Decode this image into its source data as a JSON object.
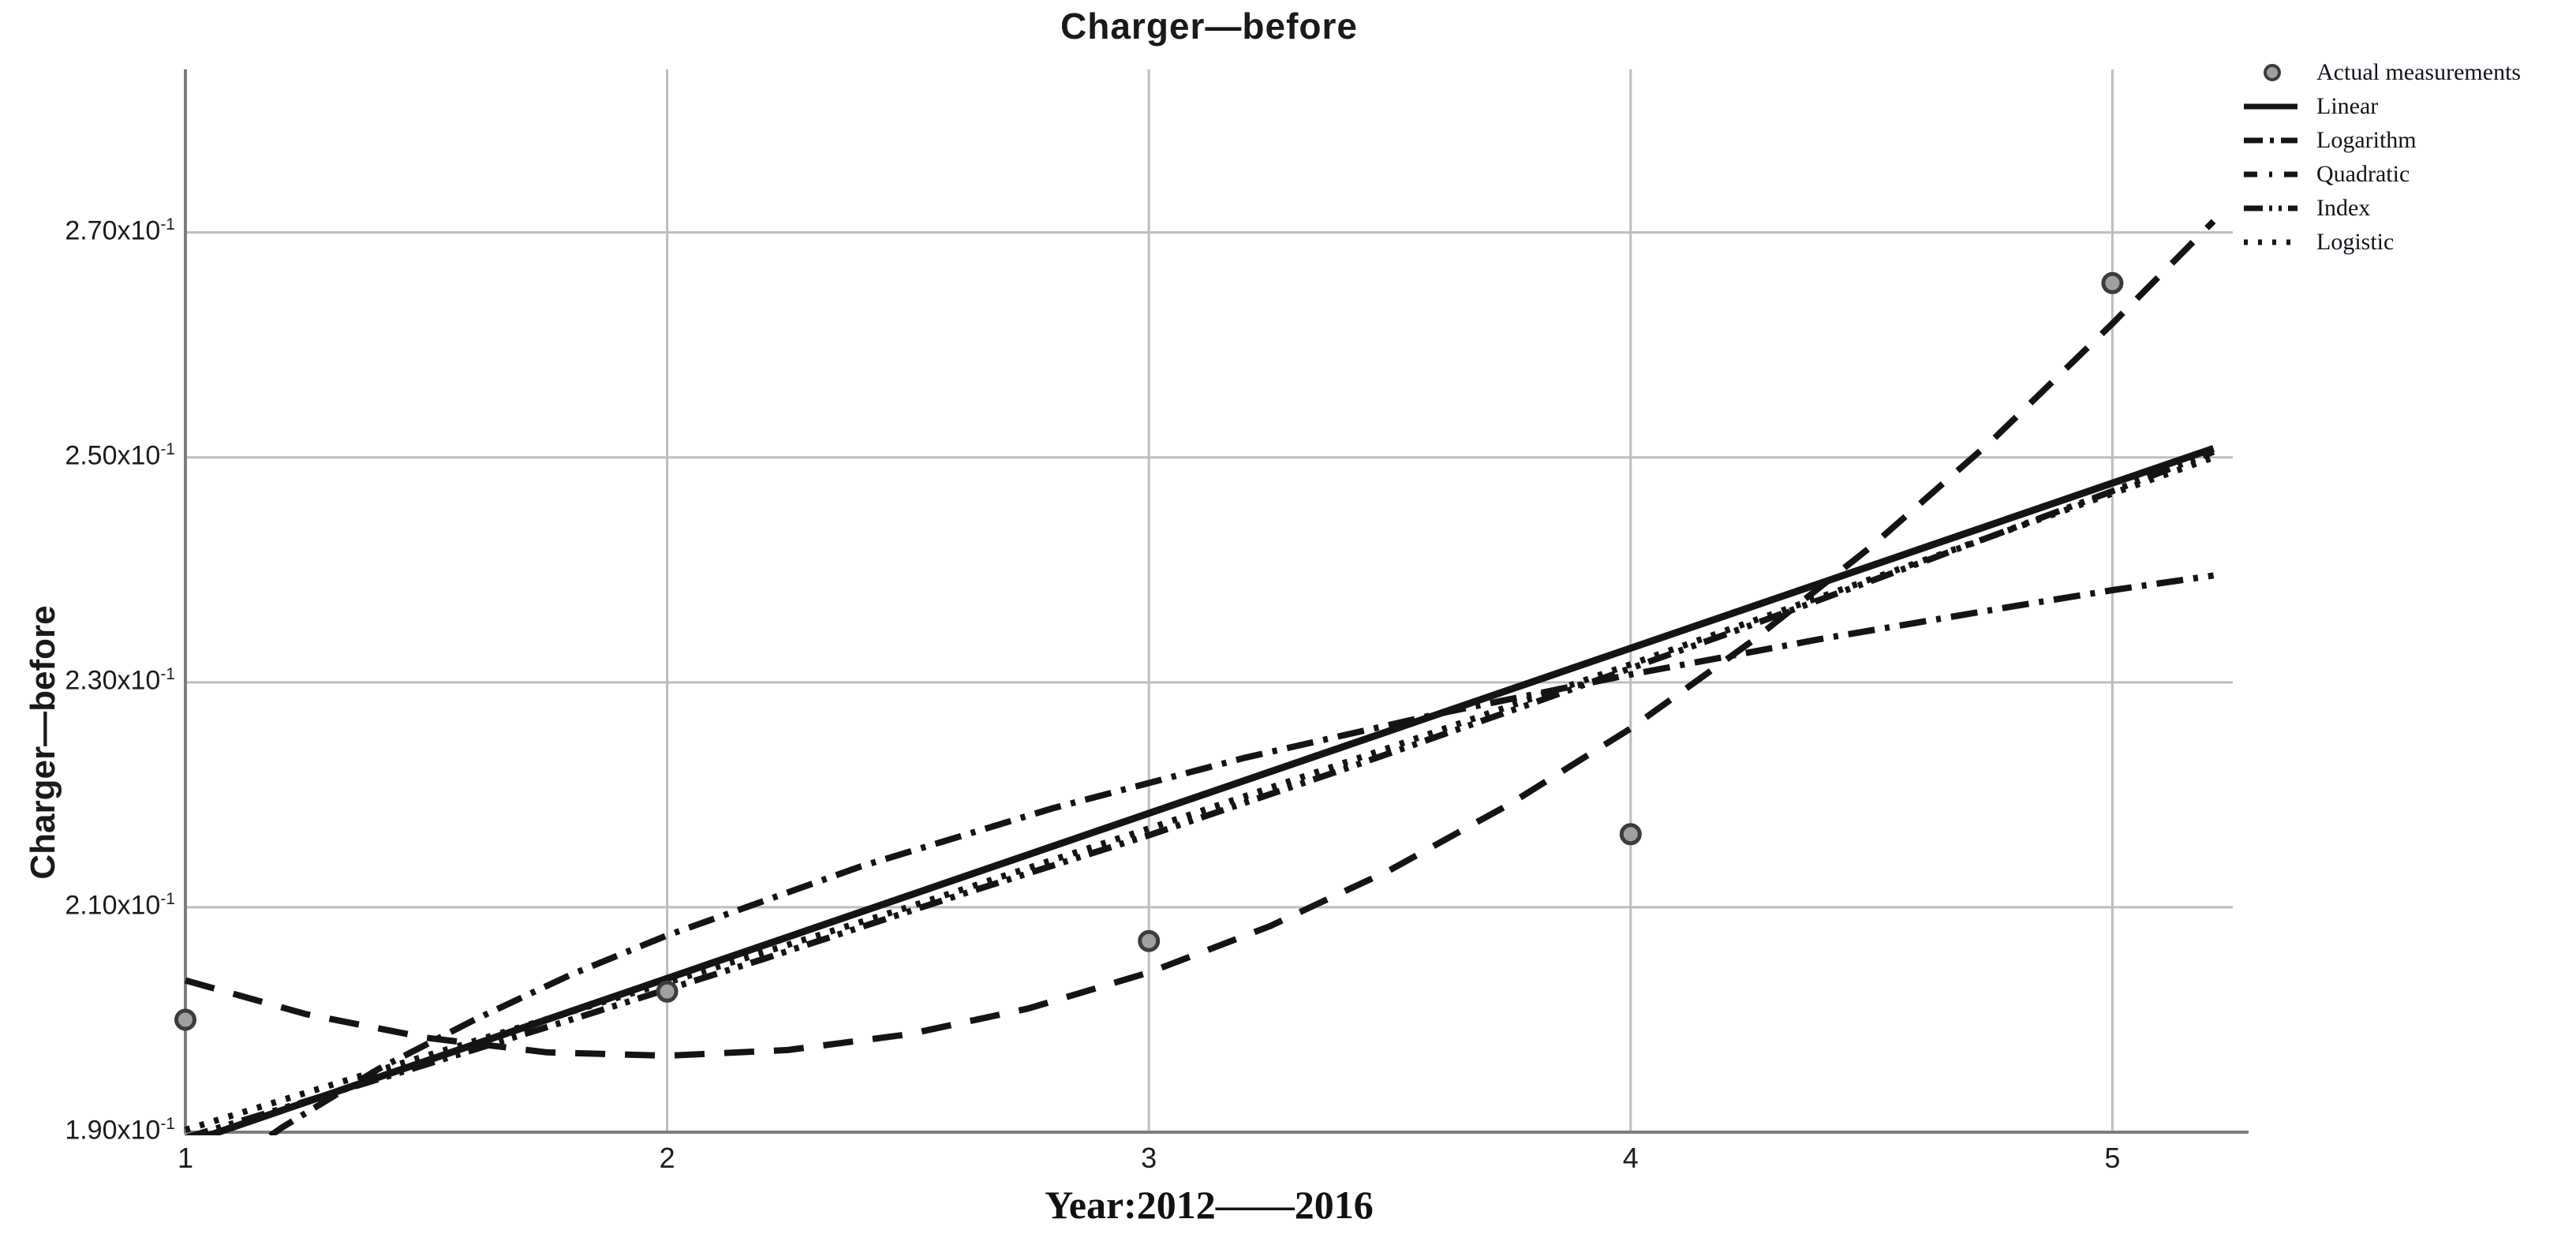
{
  "title": "Charger—before",
  "x_axis": {
    "label": "Year:2012——2016",
    "tick_labels": [
      "1",
      "2",
      "3",
      "4",
      "5"
    ],
    "tick_values": [
      1,
      2,
      3,
      4,
      5
    ]
  },
  "y_axis": {
    "label": "Charger—before",
    "ticks": [
      {
        "text": "1.90x10",
        "sup": "-1",
        "value": 0.19
      },
      {
        "text": "2.10x10",
        "sup": "-1",
        "value": 0.21
      },
      {
        "text": "2.30x10",
        "sup": "-1",
        "value": 0.23
      },
      {
        "text": "2.50x10",
        "sup": "-1",
        "value": 0.25
      },
      {
        "text": "2.70x10",
        "sup": "-1",
        "value": 0.27
      }
    ]
  },
  "legend": [
    {
      "label": "Actual measurements",
      "key": "marker"
    },
    {
      "label": "Linear",
      "key": "line",
      "dash": ""
    },
    {
      "label": "Logarithm",
      "key": "line",
      "dash": "24 9 5 9"
    },
    {
      "label": "Quadratic",
      "key": "line",
      "dash": "17 15 4 15"
    },
    {
      "label": "Index",
      "key": "line",
      "dash": "24 8 4 8 4 8"
    },
    {
      "label": "Logistic",
      "key": "line",
      "dash": "5 13"
    }
  ],
  "colors": {
    "curve": "#141414",
    "grid": "#bdbdbd",
    "axis": "#7d7d7d",
    "marker_fill": "#a0a0a0",
    "marker_stroke": "#3c3c3c"
  },
  "chart_data": {
    "type": "line",
    "title": "Charger—before",
    "xlabel": "Year:2012——2016",
    "ylabel": "Charger—before",
    "xlim": [
      1,
      5.25
    ],
    "ylim": [
      0.19,
      0.2845
    ],
    "grid": true,
    "legend_position": "outside-top-right",
    "x_ticks": [
      1,
      2,
      3,
      4,
      5
    ],
    "y_ticks": [
      0.19,
      0.21,
      0.23,
      0.25,
      0.27
    ],
    "scatter": {
      "name": "Actual measurements",
      "points": [
        [
          1,
          0.2
        ],
        [
          2,
          0.2025
        ],
        [
          3,
          0.207
        ],
        [
          4,
          0.2165
        ],
        [
          5,
          0.2655
        ]
      ]
    },
    "series": [
      {
        "name": "Linear",
        "style": "solid",
        "dash": "",
        "width": 9,
        "points": [
          [
            1,
            0.189
          ],
          [
            5.21,
            0.2508
          ]
        ]
      },
      {
        "name": "Logarithm",
        "style": "dash-dot",
        "dash": "34 13 6 13",
        "width": 8,
        "points": [
          [
            1,
            0.1843
          ],
          [
            1.2,
            0.1904
          ],
          [
            1.4,
            0.1956
          ],
          [
            1.6,
            0.2
          ],
          [
            1.8,
            0.204
          ],
          [
            2,
            0.2075
          ],
          [
            2.4,
            0.2136
          ],
          [
            2.8,
            0.2188
          ],
          [
            3.2,
            0.2233
          ],
          [
            3.6,
            0.2272
          ],
          [
            4,
            0.2307
          ],
          [
            4.4,
            0.2339
          ],
          [
            4.8,
            0.2368
          ],
          [
            5,
            0.2382
          ],
          [
            5.21,
            0.2395
          ]
        ]
      },
      {
        "name": "Quadratic",
        "style": "dash",
        "dash": "38 25",
        "width": 8,
        "points": [
          [
            1,
            0.2035
          ],
          [
            1.25,
            0.2005
          ],
          [
            1.5,
            0.1984
          ],
          [
            1.75,
            0.1971
          ],
          [
            2,
            0.1968
          ],
          [
            2.25,
            0.1973
          ],
          [
            2.5,
            0.1987
          ],
          [
            2.75,
            0.201
          ],
          [
            3,
            0.2042
          ],
          [
            3.25,
            0.2083
          ],
          [
            3.5,
            0.2133
          ],
          [
            3.75,
            0.2192
          ],
          [
            4,
            0.2259
          ],
          [
            4.25,
            0.2336
          ],
          [
            4.5,
            0.2421
          ],
          [
            4.75,
            0.2515
          ],
          [
            5,
            0.2619
          ],
          [
            5.21,
            0.271
          ]
        ]
      },
      {
        "name": "Index",
        "style": "dash-dot-dot",
        "dash": "30 11 6 11 6 11",
        "width": 8,
        "points": [
          [
            1,
            0.1895
          ],
          [
            1.4,
            0.1947
          ],
          [
            1.8,
            0.2
          ],
          [
            2.2,
            0.2054
          ],
          [
            2.6,
            0.211
          ],
          [
            3,
            0.2164
          ],
          [
            3.4,
            0.2222
          ],
          [
            3.8,
            0.2282
          ],
          [
            4.2,
            0.2343
          ],
          [
            4.6,
            0.2406
          ],
          [
            5,
            0.247
          ],
          [
            5.21,
            0.2505
          ]
        ]
      },
      {
        "name": "Logistic",
        "style": "dotted",
        "dash": "6 13",
        "width": 8,
        "points": [
          [
            1,
            0.1902
          ],
          [
            1.5,
            0.1968
          ],
          [
            2,
            0.2033
          ],
          [
            2.5,
            0.21
          ],
          [
            3,
            0.217
          ],
          [
            3.5,
            0.2242
          ],
          [
            4,
            0.2316
          ],
          [
            4.5,
            0.2392
          ],
          [
            5,
            0.2468
          ],
          [
            5.21,
            0.25
          ]
        ]
      }
    ]
  }
}
